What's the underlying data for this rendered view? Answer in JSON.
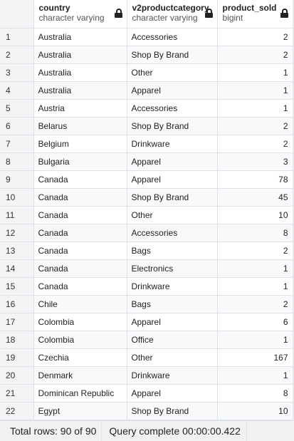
{
  "columns": [
    {
      "name": "country",
      "type": "character varying"
    },
    {
      "name": "v2productcategory",
      "type": "character varying"
    },
    {
      "name": "product_sold",
      "type": "bigint"
    }
  ],
  "rows": [
    [
      "1",
      "Australia",
      "Accessories",
      "2"
    ],
    [
      "2",
      "Australia",
      "Shop By Brand",
      "2"
    ],
    [
      "3",
      "Australia",
      "Other",
      "1"
    ],
    [
      "4",
      "Australia",
      "Apparel",
      "1"
    ],
    [
      "5",
      "Austria",
      "Accessories",
      "1"
    ],
    [
      "6",
      "Belarus",
      "Shop By Brand",
      "2"
    ],
    [
      "7",
      "Belgium",
      "Drinkware",
      "2"
    ],
    [
      "8",
      "Bulgaria",
      "Apparel",
      "3"
    ],
    [
      "9",
      "Canada",
      "Apparel",
      "78"
    ],
    [
      "10",
      "Canada",
      "Shop By Brand",
      "45"
    ],
    [
      "11",
      "Canada",
      "Other",
      "10"
    ],
    [
      "12",
      "Canada",
      "Accessories",
      "8"
    ],
    [
      "13",
      "Canada",
      "Bags",
      "2"
    ],
    [
      "14",
      "Canada",
      "Electronics",
      "1"
    ],
    [
      "15",
      "Canada",
      "Drinkware",
      "1"
    ],
    [
      "16",
      "Chile",
      "Bags",
      "2"
    ],
    [
      "17",
      "Colombia",
      "Apparel",
      "6"
    ],
    [
      "18",
      "Colombia",
      "Office",
      "1"
    ],
    [
      "19",
      "Czechia",
      "Other",
      "167"
    ],
    [
      "20",
      "Denmark",
      "Drinkware",
      "1"
    ],
    [
      "21",
      "Dominican Republic",
      "Apparel",
      "8"
    ],
    [
      "22",
      "Egypt",
      "Shop By Brand",
      "10"
    ]
  ],
  "status": {
    "total_rows": "Total rows: 90 of 90",
    "query": "Query complete 00:00:00.422"
  }
}
